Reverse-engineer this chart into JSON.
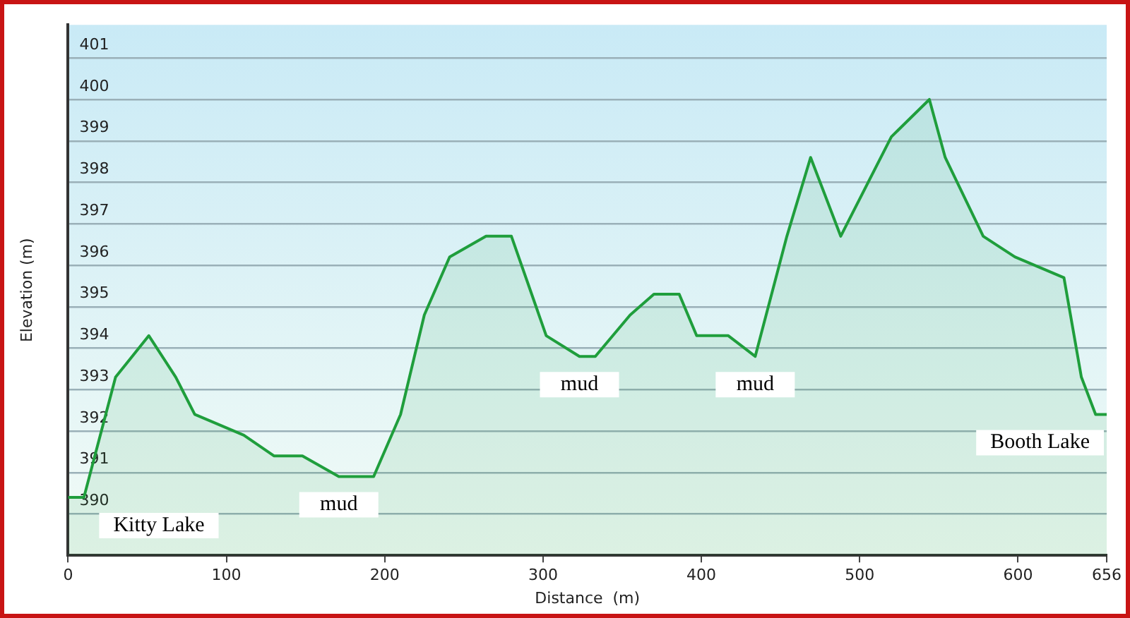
{
  "chart_data": {
    "type": "area",
    "xlabel": "Distance  (m)",
    "ylabel": "Elevation (m)",
    "xlim": [
      0,
      656
    ],
    "xticks": [
      0,
      100,
      200,
      300,
      400,
      500,
      600,
      656
    ],
    "ylim": [
      389,
      401.8
    ],
    "yticks": [
      390,
      391,
      392,
      393,
      394,
      395,
      396,
      397,
      398,
      399,
      400,
      401
    ],
    "grid": "y",
    "series": [
      {
        "color": "#1f9e3c",
        "x": [
          0,
          10,
          30,
          51,
          68,
          80,
          111,
          130,
          148,
          171,
          193,
          210,
          225,
          241,
          264,
          280,
          302,
          323,
          333,
          355,
          370,
          386,
          397,
          417,
          434,
          454,
          469,
          488,
          520,
          544,
          554,
          578,
          598,
          629,
          640,
          649,
          656
        ],
        "values": [
          390.4,
          390.4,
          393.3,
          394.3,
          393.3,
          392.4,
          391.9,
          391.4,
          391.4,
          390.9,
          390.9,
          392.4,
          394.8,
          396.2,
          396.7,
          396.7,
          394.3,
          393.8,
          393.8,
          394.8,
          395.3,
          395.3,
          394.3,
          394.3,
          393.8,
          396.7,
          398.6,
          396.7,
          399.1,
          400.0,
          398.6,
          396.7,
          396.2,
          395.7,
          393.3,
          392.4,
          392.4
        ]
      }
    ],
    "annotations": [
      {
        "text": "Kitty Lake",
        "x": 0,
        "y": 390.4
      },
      {
        "text": "mud",
        "x": 171,
        "y": 390.9
      },
      {
        "text": "mud",
        "x": 323,
        "y": 393.8
      },
      {
        "text": "mud",
        "x": 434,
        "y": 393.8
      },
      {
        "text": "Booth Lake",
        "x": 656,
        "y": 392.4
      }
    ]
  }
}
